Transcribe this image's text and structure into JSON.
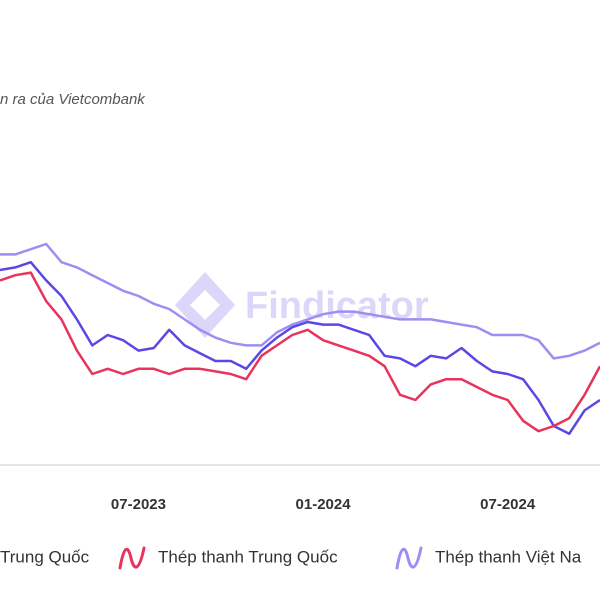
{
  "chart_data": {
    "type": "line",
    "subtitle": "n ra của Vietcombank",
    "watermark": "Findicator",
    "categories": [
      null,
      null,
      null,
      null,
      null,
      null,
      null,
      null,
      null,
      "07-2023",
      null,
      null,
      null,
      null,
      null,
      null,
      null,
      null,
      null,
      null,
      null,
      "01-2024",
      null,
      null,
      null,
      null,
      null,
      null,
      null,
      null,
      null,
      null,
      null,
      "07-2024",
      null,
      null,
      null,
      null,
      null,
      null
    ],
    "ylim": [
      0,
      100
    ],
    "series": [
      {
        "name": "Trung Quốc",
        "color": "#5a48e6",
        "values": [
          75,
          76,
          78,
          71,
          65,
          56,
          46,
          50,
          48,
          44,
          45,
          52,
          46,
          43,
          40,
          40,
          37,
          44,
          49,
          53,
          55,
          54,
          54,
          52,
          50,
          42,
          41,
          38,
          42,
          41,
          45,
          40,
          36,
          35,
          33,
          25,
          15,
          12,
          21,
          25
        ]
      },
      {
        "name": "Thép thanh Trung Quốc",
        "color": "#e8335c",
        "values": [
          71,
          73,
          74,
          63,
          56,
          44,
          35,
          37,
          35,
          37,
          37,
          35,
          37,
          37,
          36,
          35,
          33,
          42,
          46,
          50,
          52,
          48,
          46,
          44,
          42,
          38,
          27,
          25,
          31,
          33,
          33,
          30,
          27,
          25,
          17,
          13,
          15,
          18,
          27,
          38
        ]
      },
      {
        "name": "Thép thanh Việt Na",
        "color": "#9c8ff2",
        "values": [
          81,
          81,
          83,
          85,
          78,
          76,
          73,
          70,
          67,
          65,
          62,
          60,
          56,
          52,
          49,
          47,
          46,
          46,
          51,
          54,
          56,
          58,
          59,
          59,
          58,
          57,
          56,
          56,
          56,
          55,
          54,
          53,
          50,
          50,
          50,
          48,
          41,
          42,
          44,
          47
        ]
      }
    ]
  }
}
